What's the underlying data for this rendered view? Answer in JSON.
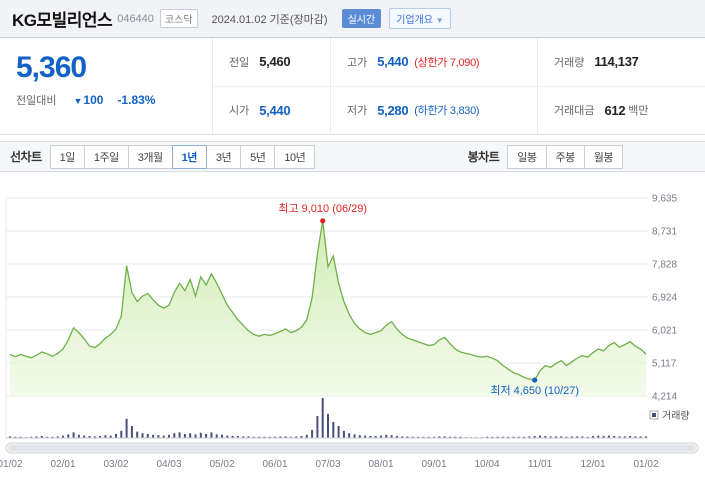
{
  "header": {
    "title": "KG모빌리언스",
    "code": "046440",
    "market_badge": "코스닥",
    "date_info": "2024.01.02 기준(장마감)",
    "realtime_badge": "실시간",
    "overview_badge": "기업개요",
    "overview_caret": "▼"
  },
  "summary": {
    "price": "5,360",
    "change_label": "전일대비",
    "change_arrow": "▼",
    "change_value": "100",
    "change_percent": "-1.83%",
    "prev_label": "전일",
    "prev_value": "5,460",
    "open_label": "시가",
    "open_value": "5,440",
    "high_label": "고가",
    "high_value": "5,440",
    "high_limit": "(상한가 7,090)",
    "low_label": "저가",
    "low_value": "5,280",
    "low_limit": "(하한가 3,830)",
    "volume_label": "거래량",
    "volume_value": "114,137",
    "amount_label": "거래대금",
    "amount_value": "612",
    "amount_unit": "백만"
  },
  "tabs": {
    "line_label": "선차트",
    "line_items": [
      "1일",
      "1주일",
      "3개월",
      "1년",
      "3년",
      "5년",
      "10년"
    ],
    "line_active": "1년",
    "candle_label": "봉차트",
    "candle_items": [
      "일봉",
      "주봉",
      "월봉"
    ]
  },
  "chart_data": {
    "type": "area",
    "ylim": [
      4214,
      9635
    ],
    "y_ticks": [
      "9,635",
      "8,731",
      "7,828",
      "6,924",
      "6,021",
      "5,117",
      "4,214"
    ],
    "x_ticks": [
      "01/02",
      "02/01",
      "03/02",
      "04/03",
      "05/02",
      "06/01",
      "07/03",
      "08/01",
      "09/01",
      "10/04",
      "11/01",
      "12/01",
      "01/02"
    ],
    "high_annotation": {
      "label": "최고 9,010 (06/29)",
      "value": 9010,
      "index": 59
    },
    "low_annotation": {
      "label": "최저 4,650 (10/27)",
      "value": 4650,
      "index": 99
    },
    "volume_legend": "거래량",
    "prices": [
      5350,
      5290,
      5350,
      5300,
      5260,
      5330,
      5420,
      5370,
      5300,
      5380,
      5500,
      5750,
      6080,
      5950,
      5780,
      5580,
      5540,
      5650,
      5800,
      5900,
      6050,
      6400,
      7780,
      7050,
      6800,
      6950,
      7020,
      6850,
      6700,
      6620,
      6700,
      7050,
      7300,
      7100,
      7400,
      6950,
      7480,
      7250,
      7560,
      7300,
      7000,
      6700,
      6500,
      6300,
      6150,
      6000,
      5900,
      5850,
      5900,
      5870,
      5920,
      5980,
      6050,
      5950,
      6000,
      6100,
      6300,
      6900,
      8100,
      9010,
      7750,
      8050,
      7300,
      6800,
      6450,
      6200,
      6050,
      5950,
      5900,
      5950,
      6000,
      6150,
      6250,
      6050,
      5900,
      5800,
      5750,
      5700,
      5650,
      5600,
      5620,
      5750,
      5820,
      5650,
      5500,
      5420,
      5380,
      5350,
      5300,
      5280,
      5300,
      5250,
      5180,
      5050,
      4950,
      4850,
      4800,
      4720,
      4680,
      4650,
      4900,
      5050,
      5000,
      5100,
      5180,
      5050,
      5150,
      5250,
      5320,
      5280,
      5400,
      5500,
      5450,
      5600,
      5680,
      5550,
      5620,
      5700,
      5580,
      5500,
      5360
    ],
    "volumes": [
      4,
      3,
      3,
      2,
      3,
      4,
      5,
      3,
      3,
      4,
      6,
      9,
      14,
      8,
      6,
      5,
      4,
      5,
      7,
      6,
      10,
      18,
      48,
      30,
      16,
      12,
      10,
      8,
      7,
      6,
      8,
      12,
      14,
      10,
      12,
      9,
      13,
      10,
      14,
      9,
      8,
      6,
      5,
      5,
      4,
      4,
      3,
      3,
      3,
      3,
      3,
      4,
      4,
      3,
      4,
      5,
      8,
      20,
      55,
      100,
      60,
      40,
      30,
      18,
      12,
      9,
      7,
      6,
      5,
      5,
      6,
      8,
      7,
      5,
      4,
      4,
      3,
      3,
      3,
      3,
      3,
      4,
      4,
      3,
      3,
      3,
      2,
      2,
      2,
      2,
      3,
      3,
      3,
      3,
      3,
      3,
      3,
      3,
      4,
      5,
      6,
      5,
      4,
      4,
      4,
      3,
      4,
      4,
      4,
      3,
      5,
      6,
      5,
      6,
      5,
      4,
      4,
      5,
      4,
      4,
      4
    ],
    "colors": {
      "line": "#6fb04a",
      "area_top": "#cdeaae",
      "area_bottom": "#f1fae7",
      "volume": "#465079",
      "up_red": "#e5231f",
      "down_blue": "#1261c4",
      "grid": "#e7e9ec"
    }
  }
}
